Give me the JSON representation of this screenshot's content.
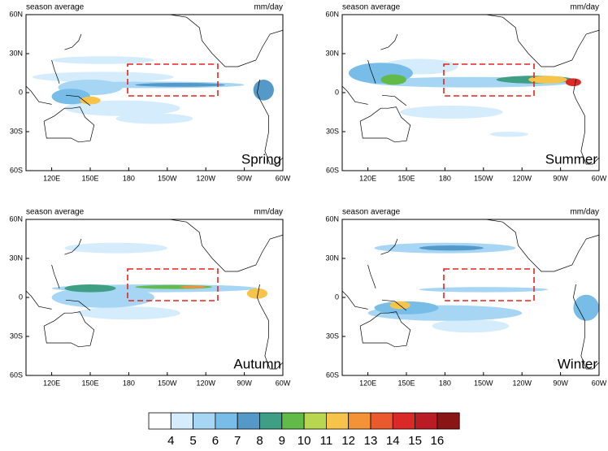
{
  "panels": [
    {
      "title_left": "season average",
      "title_right": "mm/day",
      "season": "Spring",
      "xlim": [
        100,
        300
      ],
      "ylim": [
        -60,
        60
      ],
      "xticks": [
        {
          "value": 120,
          "label": "120E"
        },
        {
          "value": 150,
          "label": "150E"
        },
        180,
        {
          "value": 210,
          "label": "150W"
        },
        {
          "value": 240,
          "label": "120W"
        },
        {
          "value": 270,
          "label": "90W"
        },
        {
          "value": 300,
          "label": "60W"
        }
      ],
      "yticks": [
        {
          "value": 60,
          "label": "60N"
        },
        {
          "value": 30,
          "label": "30N"
        },
        0,
        {
          "value": -30,
          "label": "30S"
        },
        {
          "value": -60,
          "label": "60S"
        }
      ]
    },
    {
      "title_left": "season average",
      "title_right": "mm/day",
      "season": "Summer",
      "xlim": [
        100,
        300
      ],
      "ylim": [
        -60,
        60
      ],
      "xticks": [
        {
          "value": 120,
          "label": "120E"
        },
        {
          "value": 150,
          "label": "150E"
        },
        180,
        {
          "value": 210,
          "label": "150W"
        },
        {
          "value": 240,
          "label": "120W"
        },
        {
          "value": 270,
          "label": "90W"
        },
        {
          "value": 300,
          "label": "60W"
        }
      ],
      "yticks": [
        {
          "value": 60,
          "label": "60N"
        },
        {
          "value": 30,
          "label": "30N"
        },
        0,
        {
          "value": -30,
          "label": "30S"
        },
        {
          "value": -60,
          "label": "60S"
        }
      ]
    },
    {
      "title_left": "season average",
      "title_right": "mm/day",
      "season": "Autumn",
      "xlim": [
        100,
        300
      ],
      "ylim": [
        -60,
        60
      ],
      "xticks": [
        {
          "value": 120,
          "label": "120E"
        },
        {
          "value": 150,
          "label": "150E"
        },
        180,
        {
          "value": 210,
          "label": "150W"
        },
        {
          "value": 240,
          "label": "120W"
        },
        {
          "value": 270,
          "label": "90W"
        },
        {
          "value": 300,
          "label": "60W"
        }
      ],
      "yticks": [
        {
          "value": 60,
          "label": "60N"
        },
        {
          "value": 30,
          "label": "30N"
        },
        0,
        {
          "value": -30,
          "label": "30S"
        },
        {
          "value": -60,
          "label": "60S"
        }
      ]
    },
    {
      "title_left": "season average",
      "title_right": "mm/day",
      "season": "Winter",
      "xlim": [
        100,
        300
      ],
      "ylim": [
        -60,
        60
      ],
      "xticks": [
        {
          "value": 120,
          "label": "120E"
        },
        {
          "value": 150,
          "label": "150E"
        },
        180,
        {
          "value": 210,
          "label": "150W"
        },
        {
          "value": 240,
          "label": "120W"
        },
        {
          "value": 270,
          "label": "90W"
        },
        {
          "value": 300,
          "label": "60W"
        }
      ],
      "yticks": [
        {
          "value": 60,
          "label": "60N"
        },
        {
          "value": 30,
          "label": "30N"
        },
        0,
        {
          "value": -30,
          "label": "30S"
        },
        {
          "value": -60,
          "label": "60S"
        }
      ]
    }
  ],
  "colorbar": {
    "levels": [
      4,
      5,
      6,
      7,
      8,
      9,
      10,
      11,
      12,
      13,
      14,
      15,
      16
    ],
    "colors": [
      "#ffffff",
      "#d4ecfb",
      "#a6d6f4",
      "#78bde8",
      "#5599c9",
      "#3e9f84",
      "#62ba48",
      "#b9d650",
      "#f6c44a",
      "#f39236",
      "#ea5a2d",
      "#da2a27",
      "#b91c22",
      "#8a1515"
    ]
  }
}
